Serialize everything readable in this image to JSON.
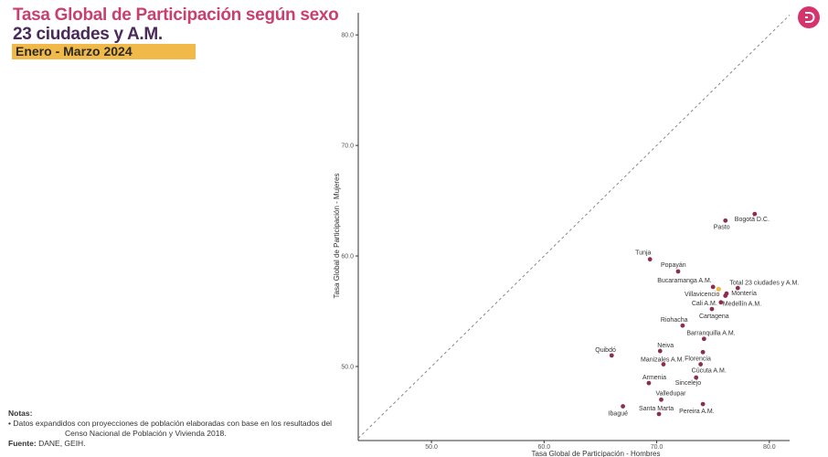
{
  "header": {
    "title": "Tasa Global de Participación según sexo",
    "subtitle": "23 ciudades y A.M.",
    "period": "Enero - Marzo 2024"
  },
  "notes": {
    "heading": "Notas:",
    "line1": "• Datos expandidos con proyecciones de población elaboradas con base en los resultados del",
    "line2": "Censo Nacional de Población y Vivienda 2018.",
    "source_label": "Fuente:",
    "source_value": "DANE, GEIH."
  },
  "logo": {
    "icon": "dane-logo-icon",
    "color": "#d6336c"
  },
  "chart_data": {
    "type": "scatter",
    "xlabel": "Tasa Global de Participación - Hombres",
    "ylabel": "Tasa Global de Participación - Mujeres",
    "xlim": [
      43.5,
      81.8
    ],
    "ylim": [
      43.3,
      82
    ],
    "xticks": [
      "50.0",
      "60.0",
      "70.0",
      "80.0"
    ],
    "yticks": [
      "50.0",
      "60.0",
      "70.0",
      "80.0"
    ],
    "reference_line": "y = x",
    "grid": false,
    "colors": {
      "point": "#8c2f4f",
      "total": "#f1b94a",
      "diagonal": "#888888"
    },
    "points": [
      {
        "name": "Bogotá D.C.",
        "x": 78.7,
        "y": 63.8
      },
      {
        "name": "Pasto",
        "x": 76.1,
        "y": 63.2
      },
      {
        "name": "Tunja",
        "x": 69.4,
        "y": 59.7
      },
      {
        "name": "Popayán",
        "x": 71.9,
        "y": 58.6
      },
      {
        "name": "Bucaramanga A.M.",
        "x": 75.0,
        "y": 57.2
      },
      {
        "name": "Total 23 ciudades y A.M.",
        "x": 75.5,
        "y": 57.0,
        "highlight": true
      },
      {
        "name": "Villavicencio",
        "x": 76.2,
        "y": 56.6
      },
      {
        "name": "Montería",
        "x": 77.2,
        "y": 57.1
      },
      {
        "name": "Cali A.M.",
        "x": 75.7,
        "y": 55.8
      },
      {
        "name": "Medellín A.M.",
        "x": 76.1,
        "y": 56.4
      },
      {
        "name": "Cartagena",
        "x": 74.9,
        "y": 55.2
      },
      {
        "name": "Riohacha",
        "x": 72.3,
        "y": 53.7
      },
      {
        "name": "Barranquilla A.M.",
        "x": 74.2,
        "y": 52.5
      },
      {
        "name": "Neiva",
        "x": 70.3,
        "y": 51.4
      },
      {
        "name": "Quibdó",
        "x": 66.0,
        "y": 51.0
      },
      {
        "name": "Manizales A.M.",
        "x": 70.6,
        "y": 50.2
      },
      {
        "name": "Florencia",
        "x": 74.1,
        "y": 51.3
      },
      {
        "name": "Cúcuta A.M.",
        "x": 73.9,
        "y": 50.2
      },
      {
        "name": "Sincelejo",
        "x": 73.5,
        "y": 49.0
      },
      {
        "name": "Armenia",
        "x": 69.3,
        "y": 48.5
      },
      {
        "name": "Valledupar",
        "x": 70.4,
        "y": 47.0
      },
      {
        "name": "Ibagué",
        "x": 67.0,
        "y": 46.4
      },
      {
        "name": "Santa Marta",
        "x": 70.2,
        "y": 45.7
      },
      {
        "name": "Pereira A.M.",
        "x": 74.1,
        "y": 46.6
      }
    ]
  }
}
